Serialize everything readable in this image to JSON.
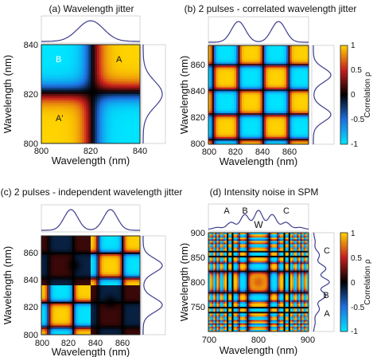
{
  "chart_data": [
    {
      "type": "heatmap",
      "title": "(a) Wavelength jitter",
      "xlabel": "Wavelength (nm)",
      "ylabel": "Wavelength (nm)",
      "xlim": [
        800,
        840
      ],
      "ylim": [
        800,
        840
      ],
      "x_ticks": [
        "800",
        "820",
        "840"
      ],
      "y_ticks": [
        "800",
        "820",
        "840"
      ],
      "annotations": [
        "B",
        "A",
        "A'"
      ],
      "pattern": "single_jitter"
    },
    {
      "type": "heatmap",
      "title": "(b) 2 pulses - correlated wavelength jitter",
      "xlabel": "Wavelength (nm)",
      "ylabel": "Wavelength (nm)",
      "xlim": [
        800,
        875
      ],
      "ylim": [
        800,
        875
      ],
      "x_ticks": [
        "800",
        "820",
        "840",
        "860"
      ],
      "y_ticks": [
        "800",
        "820",
        "840",
        "860"
      ],
      "pattern": "two_pulse_correlated",
      "colorbar": {
        "label": "Correlation ρ",
        "range": [
          -1,
          1
        ],
        "ticks": [
          "1",
          "0.5",
          "0",
          "-0.5",
          "-1"
        ]
      }
    },
    {
      "type": "heatmap",
      "title": "(c) 2 pulses - independent wavelength jitter",
      "xlabel": "Wavelength (nm)",
      "ylabel": "Wavelength (nm)",
      "xlim": [
        800,
        875
      ],
      "ylim": [
        800,
        875
      ],
      "x_ticks": [
        "800",
        "820",
        "840",
        "860"
      ],
      "y_ticks": [
        "800",
        "820",
        "840",
        "860"
      ],
      "pattern": "two_pulse_independent"
    },
    {
      "type": "heatmap",
      "title": "(d) Intensity noise in SPM",
      "xlabel": "Wavelength (nm)",
      "ylabel": "Wavelength (nm)",
      "xlim": [
        700,
        900
      ],
      "ylim": [
        700,
        900
      ],
      "x_ticks": [
        "700",
        "800",
        "900"
      ],
      "y_ticks": [
        "750",
        "800",
        "850",
        "900"
      ],
      "annotations": [
        "A",
        "B",
        "C",
        "W"
      ],
      "pattern": "spm",
      "colorbar": {
        "label": "Correlation ρ",
        "range": [
          -1,
          1
        ],
        "ticks": [
          "1",
          "0.5",
          "0",
          "-0.5",
          "-1"
        ]
      }
    }
  ],
  "colors": {
    "positive_peak": "#ffd400",
    "positive_mid": "#c81e1e",
    "zero": "#000000",
    "negative_mid": "#1e6fe0",
    "negative_peak": "#00e5ff",
    "spectrum_line": "#3d3d8f"
  }
}
